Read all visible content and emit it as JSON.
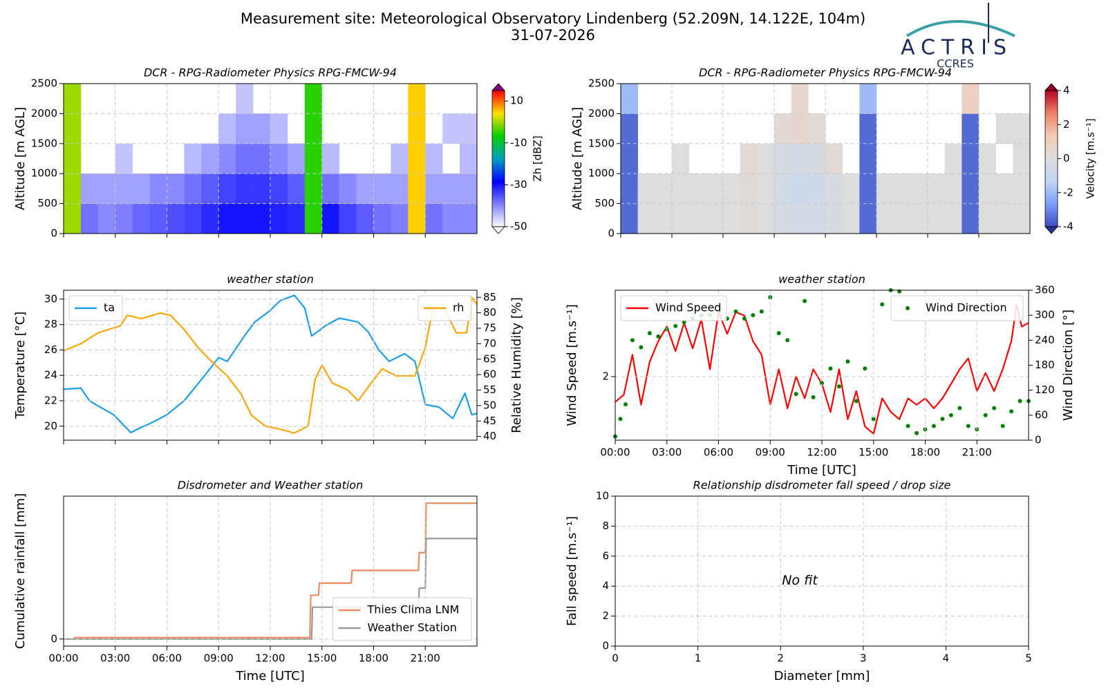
{
  "header": {
    "title": "Measurement site: Meteorological Observatory Lindenberg (52.209N, 14.122E, 104m)",
    "date": "31-07-2026",
    "logo": "ACTRIS",
    "logo_sub": "CCRES"
  },
  "chart_data": [
    {
      "type": "heatmap",
      "title": "DCR - RPG-Radiometer Physics RPG-FMCW-94",
      "ylabel": "Altitude [m AGL]",
      "xbins": [
        0,
        1,
        2,
        3,
        4,
        5,
        6,
        7,
        8,
        9,
        10,
        11,
        12,
        13,
        14,
        15,
        16,
        17,
        18,
        19,
        20,
        21,
        22,
        23,
        24
      ],
      "ybins": [
        0,
        500,
        1000,
        1500,
        2000,
        2500
      ],
      "values": [
        [
          0,
          -38,
          -40,
          -39,
          -37,
          -36,
          -35,
          -34,
          -32,
          -30,
          -30,
          -30,
          -31,
          -32,
          -5,
          -30,
          -34,
          -36,
          -38,
          -39,
          5,
          -38,
          -40,
          -40
        ],
        [
          0,
          -42,
          -42,
          -42,
          -42,
          -40,
          -40,
          -38,
          -36,
          -34,
          -33,
          -33,
          -34,
          -36,
          -5,
          -38,
          -40,
          -42,
          -42,
          -42,
          5,
          -42,
          -42,
          -42
        ],
        [
          0,
          null,
          null,
          -45,
          null,
          null,
          null,
          -44,
          -42,
          -40,
          -38,
          -38,
          -40,
          -42,
          -5,
          -44,
          null,
          null,
          null,
          -44,
          5,
          -44,
          null,
          -44
        ],
        [
          0,
          null,
          null,
          null,
          null,
          null,
          null,
          null,
          null,
          -44,
          -42,
          -42,
          -44,
          null,
          -5,
          null,
          null,
          null,
          null,
          null,
          5,
          null,
          -45,
          -45
        ],
        [
          0,
          null,
          null,
          null,
          null,
          null,
          null,
          null,
          null,
          null,
          -45,
          null,
          null,
          null,
          -5,
          null,
          null,
          null,
          null,
          null,
          5,
          null,
          null,
          null
        ]
      ],
      "xlim": [
        0,
        24
      ],
      "xticks": [
        0,
        3,
        6,
        9,
        12,
        15,
        18,
        21
      ],
      "show_xticklabels": false,
      "ylim": [
        0,
        2500
      ],
      "yticks": [
        0,
        500,
        1000,
        1500,
        2000,
        2500
      ],
      "grid": true,
      "colorbar_label": "Zh [dBZ]",
      "clim": [
        -50,
        15
      ],
      "cticks": [
        10,
        -10,
        -30,
        -50
      ],
      "colors": [
        "#ffffff",
        "#8080ff",
        "#0000ff",
        "#00a0c0",
        "#00d000",
        "#ffe000",
        "#ff0000"
      ],
      "under_color": "#ffffff",
      "over_color": "#800080"
    },
    {
      "type": "heatmap",
      "title": "DCR - RPG-Radiometer Physics RPG-FMCW-94",
      "ylabel": "Altitude [m AGL]",
      "xbins": [
        0,
        1,
        2,
        3,
        4,
        5,
        6,
        7,
        8,
        9,
        10,
        11,
        12,
        13,
        14,
        15,
        16,
        17,
        18,
        19,
        20,
        21,
        22,
        23,
        24
      ],
      "ybins": [
        0,
        500,
        1000,
        1500,
        2000,
        2500
      ],
      "values": [
        [
          -3.5,
          0,
          0,
          0,
          0,
          0,
          0,
          0.2,
          0,
          -0.3,
          -0.5,
          -0.5,
          -0.3,
          0,
          -3.5,
          0,
          0,
          0,
          0,
          0,
          -3.5,
          0,
          0,
          0
        ],
        [
          -3.5,
          0,
          0,
          0,
          0,
          0,
          0,
          0.2,
          0,
          -0.5,
          -0.8,
          -0.6,
          -0.3,
          0,
          -3.5,
          0,
          0,
          0,
          0,
          0,
          -3.5,
          0,
          0,
          0
        ],
        [
          -3.5,
          null,
          null,
          0,
          null,
          null,
          null,
          0.3,
          0,
          -0.3,
          -0.5,
          -0.3,
          0.3,
          null,
          -3.5,
          null,
          null,
          null,
          null,
          0,
          -3.5,
          0,
          null,
          0
        ],
        [
          -3.5,
          null,
          null,
          null,
          null,
          null,
          null,
          null,
          null,
          0.3,
          0.5,
          0.3,
          null,
          null,
          -3.5,
          null,
          null,
          null,
          null,
          null,
          -3.5,
          null,
          0,
          0
        ],
        [
          -2,
          null,
          null,
          null,
          null,
          null,
          null,
          null,
          null,
          null,
          0.5,
          null,
          null,
          null,
          -2,
          null,
          null,
          null,
          null,
          null,
          1,
          null,
          null,
          null
        ]
      ],
      "xlim": [
        0,
        24
      ],
      "xticks": [
        0,
        3,
        6,
        9,
        12,
        15,
        18,
        21
      ],
      "show_xticklabels": false,
      "ylim": [
        0,
        2500
      ],
      "yticks": [
        0,
        500,
        1000,
        1500,
        2000,
        2500
      ],
      "grid": true,
      "colorbar_label": "Velocity [m.s⁻¹]",
      "clim": [
        -4,
        4
      ],
      "cticks": [
        4,
        2,
        0,
        -2,
        -4
      ],
      "colors": [
        "#3b4cc0",
        "#7b9ff9",
        "#c0d4f5",
        "#dddddd",
        "#f2cbb7",
        "#ee8468",
        "#b40426"
      ],
      "under_color": "#26348f",
      "over_color": "#8c0020"
    },
    {
      "type": "line",
      "title": "weather station",
      "ylabel": "Temperature [°C]",
      "y2label": "Relative Humidity [%]",
      "xlim": [
        0,
        24
      ],
      "xticks": [
        0,
        3,
        6,
        9,
        12,
        15,
        18,
        21
      ],
      "show_xticklabels": false,
      "ylim": [
        18.9,
        30.7
      ],
      "yticks": [
        20,
        22,
        24,
        26,
        28,
        30
      ],
      "y2lim": [
        38.8,
        87.3
      ],
      "y2ticks": [
        40,
        45,
        50,
        55,
        60,
        65,
        70,
        75,
        80,
        85
      ],
      "grid": true,
      "series": [
        {
          "name": "ta",
          "color": "#1a9ee8",
          "legend_loc": "upper left",
          "x": [
            0,
            1,
            1.5,
            2,
            2.9,
            3.9,
            4.5,
            5,
            6,
            7,
            8.2,
            9,
            9.5,
            10.5,
            11.1,
            11.9,
            12.6,
            13.4,
            14,
            14.4,
            15.2,
            16,
            17.1,
            17.7,
            18.3,
            18.9,
            19.8,
            20.4,
            21,
            21.8,
            22.6,
            23.3,
            23.7,
            24
          ],
          "values": [
            22.9,
            23.0,
            22.0,
            21.6,
            20.9,
            19.5,
            19.9,
            20.2,
            20.9,
            22.0,
            24.0,
            25.4,
            25.1,
            27.1,
            28.2,
            29.0,
            29.9,
            30.3,
            29.3,
            27.1,
            27.9,
            28.5,
            28.2,
            27.4,
            26.0,
            25.1,
            25.7,
            25.1,
            21.7,
            21.5,
            20.6,
            22.6,
            20.9,
            21.0
          ]
        },
        {
          "name": "rh",
          "color": "#ffa500",
          "axis": "y2",
          "legend_loc": "upper right",
          "x": [
            0,
            1,
            2,
            3.3,
            3.7,
            4.5,
            5.6,
            6.2,
            7,
            7.8,
            8.6,
            9.5,
            10.3,
            10.9,
            11.7,
            12.6,
            13.4,
            14.2,
            14.6,
            15,
            15.6,
            16.5,
            17.1,
            17.7,
            18.5,
            19.3,
            20.4,
            21,
            21.4,
            22,
            22.8,
            23.4,
            23.7,
            24
          ],
          "values": [
            67.7,
            70.0,
            73.5,
            75.8,
            79.2,
            78.1,
            79.9,
            79.2,
            74.6,
            68.8,
            64.2,
            59.6,
            53.8,
            46.9,
            43.4,
            42.3,
            41.1,
            43.4,
            58.4,
            63.1,
            57.3,
            55.0,
            51.5,
            56.1,
            61.9,
            59.6,
            59.6,
            68.8,
            80.4,
            82.7,
            73.5,
            73.5,
            85,
            82.7
          ]
        }
      ]
    },
    {
      "type": "line",
      "title": "weather station",
      "ylabel": "Wind Speed [m.s⁻¹]",
      "y2label": "Wind Direction [°]",
      "xlabel": "Time [UTC]",
      "xlim": [
        0,
        24
      ],
      "xticks": [
        {
          "value": 0,
          "label": "00:00"
        },
        {
          "value": 3,
          "label": "03:00"
        },
        {
          "value": 6,
          "label": "06:00"
        },
        {
          "value": 9,
          "label": "09:00"
        },
        {
          "value": 12,
          "label": "12:00"
        },
        {
          "value": 15,
          "label": "15:00"
        },
        {
          "value": 18,
          "label": "18:00"
        },
        {
          "value": 21,
          "label": "21:00"
        }
      ],
      "ylim": [
        1.3,
        2.95
      ],
      "yticks": [
        2
      ],
      "y2lim": [
        0,
        360
      ],
      "y2ticks": [
        0,
        60,
        120,
        180,
        240,
        300,
        360
      ],
      "grid": true,
      "series": [
        {
          "name": "Wind Speed",
          "color": "#ff0000",
          "legend_loc": "upper left",
          "x": [
            0,
            0.5,
            1,
            1.5,
            2,
            2.5,
            3,
            3.5,
            4,
            4.5,
            5,
            5.5,
            6,
            6.5,
            7,
            7.5,
            8,
            8.5,
            9,
            9.5,
            10,
            10.5,
            11,
            11.5,
            12,
            12.5,
            13,
            13.5,
            14,
            14.5,
            15,
            15.5,
            16,
            16.5,
            17,
            17.5,
            18,
            18.5,
            19,
            19.5,
            20,
            20.5,
            21,
            21.5,
            22,
            22.5,
            23,
            23.3,
            23.6,
            24
          ],
          "values": [
            1.72,
            1.8,
            2.24,
            1.69,
            2.16,
            2.39,
            2.55,
            2.28,
            2.59,
            2.31,
            2.63,
            2.08,
            2.71,
            2.47,
            2.71,
            2.67,
            2.39,
            2.24,
            1.69,
            2.08,
            1.65,
            2.0,
            1.76,
            2.08,
            1.92,
            1.61,
            2.08,
            1.53,
            1.84,
            1.45,
            1.37,
            1.76,
            1.61,
            1.53,
            1.76,
            1.69,
            1.76,
            1.65,
            1.76,
            1.92,
            2.08,
            2.2,
            1.84,
            2.04,
            1.84,
            2.08,
            2.39,
            2.79,
            2.55,
            2.59
          ]
        },
        {
          "name": "Wind Direction",
          "color": "#008000",
          "type": "scatter",
          "axis": "y2",
          "legend_loc": "upper right",
          "x": [
            0,
            0.3,
            0.6,
            1,
            1.5,
            2,
            2.5,
            3,
            3.5,
            4,
            4.5,
            5,
            5.5,
            6,
            6.5,
            7,
            7.5,
            8,
            8.5,
            9,
            9.5,
            10,
            10.5,
            11,
            11.5,
            12,
            12.5,
            13,
            13.5,
            14,
            14.5,
            15,
            15.5,
            16,
            16.5,
            17,
            17.5,
            18,
            18.5,
            19,
            19.5,
            20,
            20.5,
            21,
            21.5,
            22,
            22.5,
            23,
            23.5,
            24
          ],
          "values": [
            9,
            51,
            86,
            240,
            223,
            257,
            249,
            266,
            274,
            283,
            292,
            300,
            300,
            309,
            292,
            309,
            292,
            300,
            309,
            343,
            257,
            240,
            111,
            334,
            103,
            137,
            172,
            129,
            189,
            94,
            172,
            51,
            326,
            360,
            357,
            34,
            17,
            26,
            34,
            51,
            60,
            77,
            34,
            26,
            60,
            77,
            34,
            69,
            94,
            94
          ]
        }
      ]
    },
    {
      "type": "line",
      "title": "Disdrometer and Weather station",
      "ylabel": "Cumulative rainfall [mm]",
      "xlabel": "Time [UTC]",
      "xlim": [
        0,
        24
      ],
      "xticks": [
        {
          "value": 0,
          "label": "00:00"
        },
        {
          "value": 3,
          "label": "03:00"
        },
        {
          "value": 6,
          "label": "06:00"
        },
        {
          "value": 9,
          "label": "09:00"
        },
        {
          "value": 12,
          "label": "12:00"
        },
        {
          "value": 15,
          "label": "15:00"
        },
        {
          "value": 18,
          "label": "18:00"
        },
        {
          "value": 21,
          "label": "21:00"
        }
      ],
      "ylim": [
        -0.2,
        4.04
      ],
      "yticks": [
        0
      ],
      "grid": true,
      "legend": "lower right",
      "series": [
        {
          "name": "Thies Clima LNM",
          "color": "#ee8a5f",
          "x": [
            0,
            0.6,
            0.65,
            14.3,
            14.35,
            14.8,
            14.85,
            16.7,
            16.75,
            20.6,
            20.65,
            21.0,
            21.05,
            24
          ],
          "values": [
            0,
            0,
            0.04,
            0.04,
            1.24,
            1.24,
            1.58,
            1.58,
            1.94,
            1.94,
            2.44,
            2.44,
            3.84,
            3.84
          ]
        },
        {
          "name": "Weather Station",
          "color": "#999999",
          "x": [
            0,
            14.4,
            14.45,
            20.6,
            20.65,
            21.0,
            21.05,
            24
          ],
          "values": [
            0,
            0,
            0.9,
            0.9,
            1.44,
            1.44,
            2.84,
            2.84
          ]
        }
      ]
    },
    {
      "type": "scatter",
      "title": "Relationship disdrometer fall speed / drop size",
      "ylabel": "Fall speed [m.s⁻¹]",
      "xlabel": "Diameter [mm]",
      "xlim": [
        0,
        5
      ],
      "xticks": [
        0,
        1,
        2,
        3,
        4,
        5
      ],
      "ylim": [
        0,
        10
      ],
      "yticks": [
        0,
        2,
        4,
        6,
        8,
        10
      ],
      "grid": true,
      "annotation": "No fit",
      "series": []
    }
  ]
}
